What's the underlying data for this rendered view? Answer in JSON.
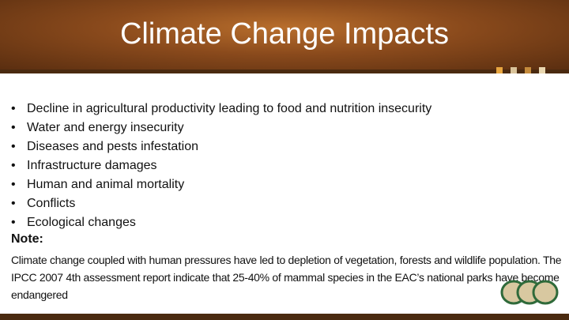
{
  "header": {
    "title": "Climate Change Impacts"
  },
  "bullets": [
    "Decline in agricultural productivity leading to food and nutrition  insecurity",
    "Water and energy insecurity",
    "Diseases and pests infestation",
    "Infrastructure damages",
    "Human and animal mortality",
    "Conflicts",
    "Ecological changes"
  ],
  "note": {
    "label": "Note:",
    "text": "Climate change coupled with  human pressures have led to depletion of vegetation, forests and wildlife population. The IPCC 2007 4th assessment report indicate that 25-40% of mammal species in the EAC’s national parks have become endangered"
  }
}
